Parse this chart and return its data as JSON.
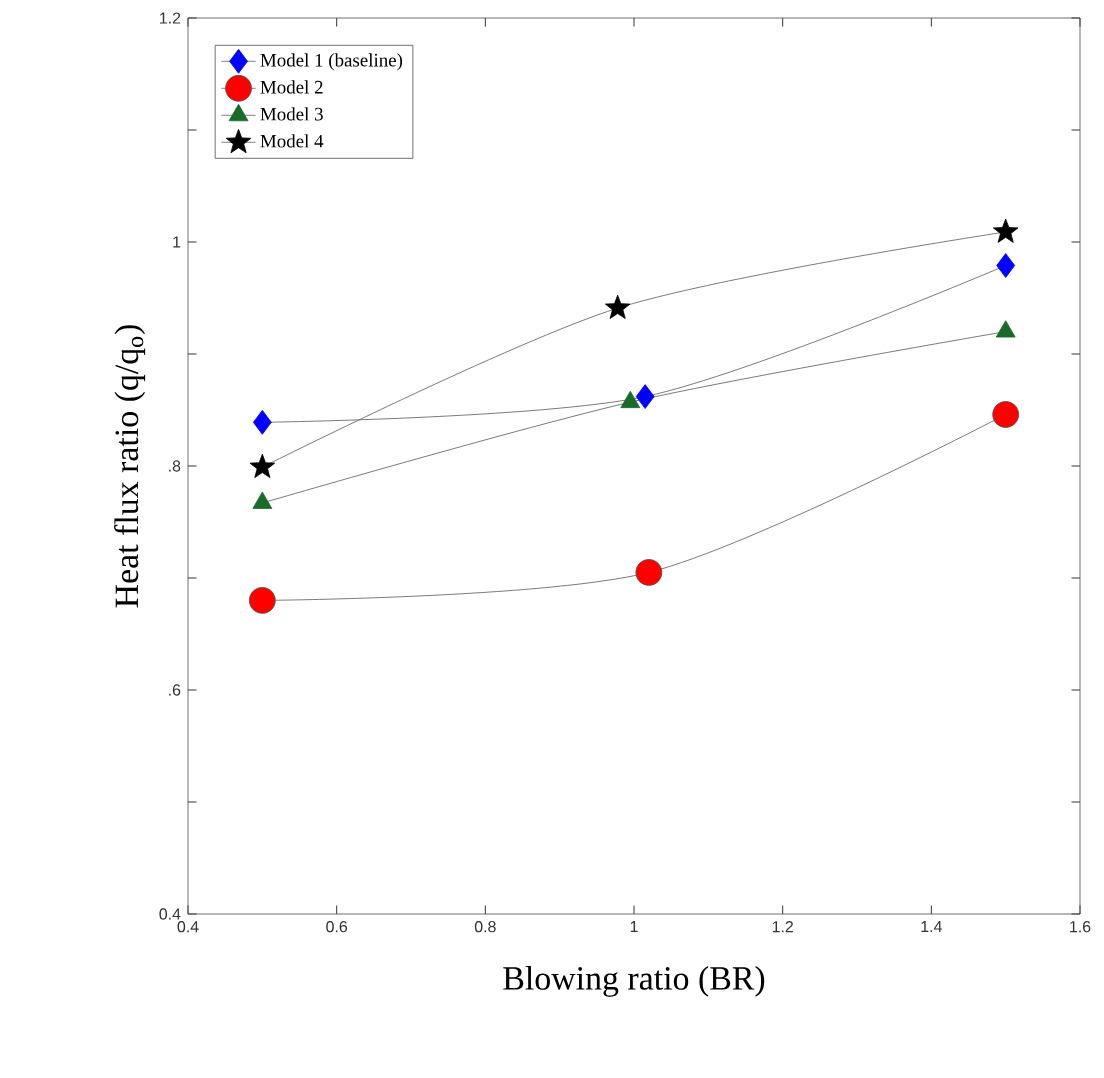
{
  "chart_data": {
    "type": "line",
    "xlabel": "Blowing ratio (BR)",
    "ylabel": "Heat flux ratio (q/q$_{o}$)",
    "xlim": [
      0.4,
      1.6
    ],
    "xticks": [
      0.4,
      0.6,
      0.8,
      1,
      1.2,
      1.4,
      1.6
    ],
    "ylim": [
      0.4,
      1.2
    ],
    "yticks": [
      0.4,
      {
        "value": 0.5,
        "label": null
      },
      {
        "value": 0.6,
        "label": ".6"
      },
      {
        "value": 0.7,
        "label": null
      },
      {
        "value": 0.8,
        "label": ".8"
      },
      {
        "value": 0.9,
        "label": null
      },
      1,
      {
        "value": 1.1,
        "label": null
      },
      1.2
    ],
    "legend": "top left",
    "grid": false,
    "series": [
      {
        "name": "Model 1 (baseline)",
        "color": "#0000ff",
        "marker": "diamond",
        "x": [
          0.5,
          1.015,
          1.5
        ],
        "values": [
          0.839,
          0.862,
          0.979
        ]
      },
      {
        "name": "Model 2",
        "color": "#ff0000",
        "marker": "circle",
        "x": [
          0.5,
          1.02,
          1.5
        ],
        "values": [
          0.68,
          0.705,
          0.846
        ]
      },
      {
        "name": "Model 3",
        "color": "#1a6b2a",
        "marker": "triangle",
        "x": [
          0.5,
          0.995,
          1.5
        ],
        "values": [
          0.767,
          0.857,
          0.92
        ]
      },
      {
        "name": "Model 4",
        "color": "#000000",
        "marker": "star",
        "x": [
          0.5,
          0.978,
          1.5
        ],
        "values": [
          0.799,
          0.941,
          1.009
        ]
      }
    ]
  }
}
